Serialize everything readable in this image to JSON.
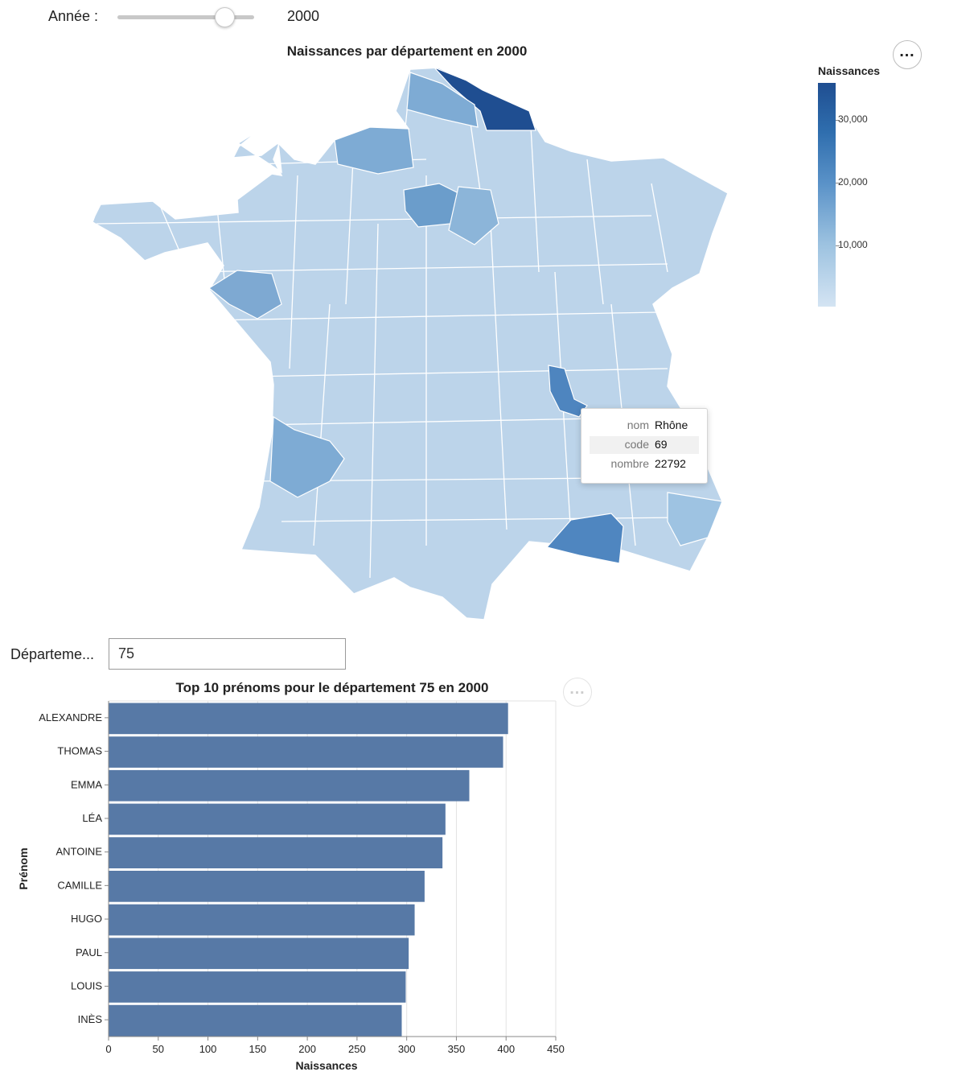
{
  "slider": {
    "label": "Année :",
    "value": "2000",
    "min": 1900,
    "max": 2019,
    "position": 0.78
  },
  "map": {
    "title": "Naissances par département en 2000",
    "menu_icon": "ellipsis-icon",
    "legend": {
      "title": "Naissances",
      "ticks": [
        "30,000",
        "20,000",
        "10,000"
      ],
      "tick_values": [
        30000,
        20000,
        10000
      ],
      "min": 0,
      "max": 35500
    },
    "color_scheme": {
      "low": "#d4e4f3",
      "mid": "#9cc2e0",
      "high": "#1f4e91",
      "border": "#ffffff",
      "selected": "#4e85bf"
    },
    "tooltip": {
      "rows": [
        {
          "key": "nom",
          "value": "Rhône"
        },
        {
          "key": "code",
          "value": "69"
        },
        {
          "key": "nombre",
          "value": "22792"
        }
      ]
    }
  },
  "department": {
    "label": "Départeme...",
    "value": "75"
  },
  "chart_data": {
    "type": "bar",
    "orientation": "horizontal",
    "title": "Top 10 prénoms pour le département 75 en 2000",
    "xlabel": "Naissances",
    "ylabel": "Prénom",
    "categories": [
      "ALEXANDRE",
      "THOMAS",
      "EMMA",
      "LÉA",
      "ANTOINE",
      "CAMILLE",
      "HUGO",
      "PAUL",
      "LOUIS",
      "INÈS"
    ],
    "values": [
      402,
      397,
      363,
      339,
      336,
      318,
      308,
      302,
      299,
      295
    ],
    "xlim": [
      0,
      450
    ],
    "xticks": [
      0,
      50,
      100,
      150,
      200,
      250,
      300,
      350,
      400,
      450
    ],
    "bar_color": "#5779a6",
    "grid": true,
    "menu_icon": "ellipsis-icon"
  }
}
